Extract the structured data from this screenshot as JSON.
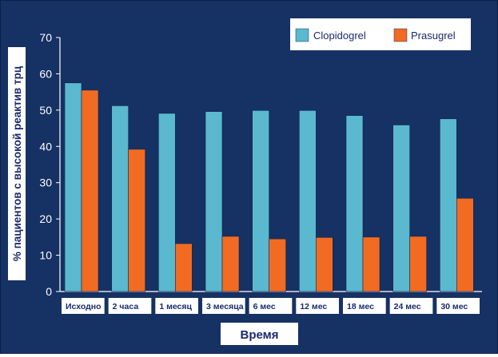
{
  "chart_data": {
    "type": "bar",
    "title": "",
    "xlabel": "Время",
    "ylabel": "% пациентов с высокой реактив трц",
    "ylim": [
      0,
      70
    ],
    "yticks": [
      0,
      10,
      20,
      30,
      40,
      50,
      60,
      70
    ],
    "grid": false,
    "legend_position": "top-right",
    "categories": [
      "Исходно",
      "2 часа",
      "1 месяц",
      "3 месяца",
      "6 мес",
      "12 мес",
      "18 мес",
      "24 мес",
      "30 мес"
    ],
    "series": [
      {
        "name": "Clopidogrel",
        "color": "#5ab8cf",
        "values": [
          57.5,
          51.2,
          49.1,
          49.6,
          49.9,
          49.9,
          48.5,
          45.9,
          47.6
        ]
      },
      {
        "name": "Prasugrel",
        "color": "#f26b22",
        "values": [
          55.5,
          39.2,
          13.2,
          15.2,
          14.5,
          14.9,
          15.0,
          15.2,
          25.7
        ]
      }
    ]
  },
  "colors": {
    "background": "#163163",
    "axis_text": "#ffffff",
    "label_box": "#ffffff",
    "label_text": "#1a2a6c"
  }
}
